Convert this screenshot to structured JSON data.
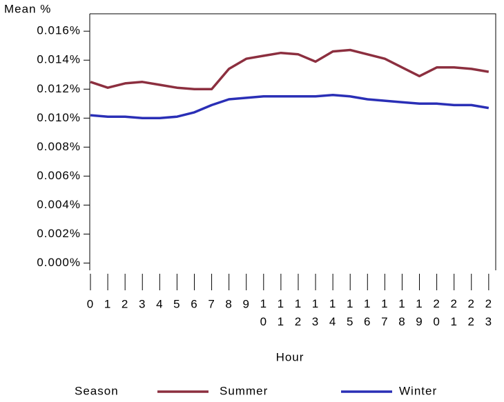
{
  "chart_data": {
    "type": "line",
    "ylabel": "Mean %",
    "xlabel": "Hour",
    "legend_title": "Season",
    "categories": [
      "0",
      "1",
      "2",
      "3",
      "4",
      "5",
      "6",
      "7",
      "8",
      "9",
      "10",
      "11",
      "12",
      "13",
      "14",
      "15",
      "16",
      "17",
      "18",
      "19",
      "20",
      "21",
      "22",
      "23"
    ],
    "series": [
      {
        "name": "Summer",
        "color": "#8c2f3f",
        "values": [
          0.0125,
          0.0121,
          0.0124,
          0.0125,
          0.0123,
          0.0121,
          0.012,
          0.012,
          0.0134,
          0.0141,
          0.0143,
          0.0145,
          0.0144,
          0.0139,
          0.0146,
          0.0147,
          0.0144,
          0.0141,
          0.0135,
          0.0129,
          0.0135,
          0.0135,
          0.0134,
          0.0132
        ]
      },
      {
        "name": "Winter",
        "color": "#2a2fb6",
        "values": [
          0.0102,
          0.0101,
          0.0101,
          0.01,
          0.01,
          0.0101,
          0.0104,
          0.0109,
          0.0113,
          0.0114,
          0.0115,
          0.0115,
          0.0115,
          0.0115,
          0.0116,
          0.0115,
          0.0113,
          0.0112,
          0.0111,
          0.011,
          0.011,
          0.0109,
          0.0109,
          0.0107
        ]
      }
    ],
    "ylim": [
      -0.0005,
      0.0172
    ],
    "yticks": [
      {
        "value": 0.0,
        "label": "0.000%"
      },
      {
        "value": 0.002,
        "label": "0.002%"
      },
      {
        "value": 0.004,
        "label": "0.004%"
      },
      {
        "value": 0.006,
        "label": "0.006%"
      },
      {
        "value": 0.008,
        "label": "0.008%"
      },
      {
        "value": 0.01,
        "label": "0.010%"
      },
      {
        "value": 0.012,
        "label": "0.012%"
      },
      {
        "value": 0.014,
        "label": "0.014%"
      },
      {
        "value": 0.016,
        "label": "0.016%"
      }
    ],
    "legend": "bottom"
  }
}
